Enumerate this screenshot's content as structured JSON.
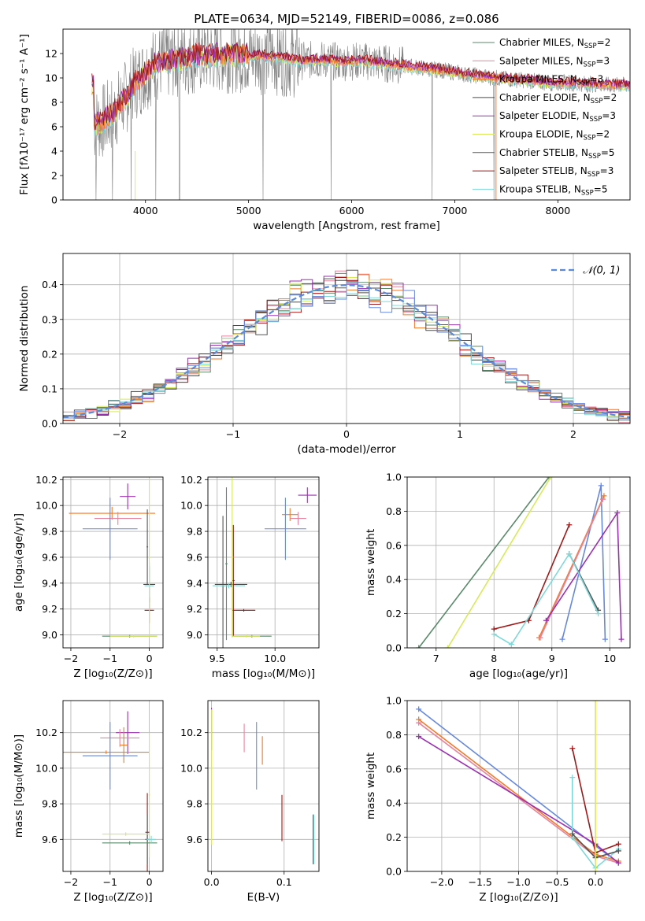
{
  "colors": {
    "chabrier_miles": "#5a8a6a",
    "salpeter_miles": "#e8839e",
    "kroupa_miles": "#ef7a2a",
    "chabrier_elodie": "#4a4a4a",
    "salpeter_elodie": "#9b30b0",
    "kroupa_elodie": "#d6ea5a",
    "chabrier_stelib": "#555555",
    "salpeter_stelib": "#a01818",
    "kroupa_stelib": "#7fd8d8",
    "blue": "#6688dd",
    "grid": "#b0b0b0",
    "spectrum": "#808080"
  },
  "chart_data": [
    {
      "id": "spectrum",
      "type": "line",
      "title": "PLATE=0634, MJD=52149, FIBERID=0086, z=0.086",
      "xlabel": "wavelength [Angstrom, rest frame]",
      "ylabel": "Flux [fλ10⁻¹⁷ erg cm⁻² s⁻¹ A⁻¹]",
      "xlim": [
        3200,
        8700
      ],
      "ylim": [
        0,
        14
      ],
      "xticks": [
        4000,
        5000,
        6000,
        7000,
        8000
      ],
      "yticks": [
        0,
        2,
        4,
        6,
        8,
        10,
        12
      ],
      "grid": false,
      "legend_placement": "right",
      "legend": [
        {
          "label": "Chabrier MILES, N",
          "sub": "SSP",
          "suffix": "=2",
          "color": "#5a8a6a"
        },
        {
          "label": "Salpeter MILES, N",
          "sub": "SSP",
          "suffix": "=3",
          "color": "#e8839e"
        },
        {
          "label": "Kroupa MILES, N",
          "sub": "SSP",
          "suffix": "=3",
          "color": "#ef7a2a"
        },
        {
          "label": "Chabrier ELODIE, N",
          "sub": "SSP",
          "suffix": "=2",
          "color": "#4a4a4a"
        },
        {
          "label": "Salpeter ELODIE, N",
          "sub": "SSP",
          "suffix": "=3",
          "color": "#9b30b0"
        },
        {
          "label": "Kroupa ELODIE, N",
          "sub": "SSP",
          "suffix": "=2",
          "color": "#d6ea5a"
        },
        {
          "label": "Chabrier STELIB, N",
          "sub": "SSP",
          "suffix": "=5",
          "color": "#555555"
        },
        {
          "label": "Salpeter STELIB, N",
          "sub": "SSP",
          "suffix": "=3",
          "color": "#a01818"
        },
        {
          "label": "Kroupa STELIB, N",
          "sub": "SSP",
          "suffix": "=5",
          "color": "#7fd8d8"
        }
      ],
      "continuum": {
        "x": [
          3500,
          3600,
          3700,
          3800,
          3900,
          4000,
          4100,
          4200,
          4300,
          4500,
          4700,
          4900,
          5100,
          5300,
          5500,
          5700,
          5900,
          6100,
          6300,
          6500,
          6700,
          6900,
          7100,
          7300,
          7500,
          7700,
          7900,
          8100,
          8300,
          8500,
          8700
        ],
        "y": [
          6.1,
          6.5,
          7.2,
          8.3,
          9.6,
          10.4,
          11.2,
          11.3,
          11.5,
          11.8,
          11.9,
          11.9,
          11.8,
          11.7,
          11.4,
          11.5,
          11.3,
          11.4,
          11.2,
          11.0,
          10.8,
          10.6,
          10.3,
          10.1,
          9.9,
          9.8,
          9.6,
          9.6,
          9.5,
          9.4,
          9.4
        ]
      }
    },
    {
      "id": "residuals",
      "type": "line",
      "xlabel": "(data-model)/error",
      "ylabel": "Normed distribution",
      "xlim": [
        -2.5,
        2.5
      ],
      "ylim": [
        0,
        0.49
      ],
      "xticks": [
        -2,
        -1,
        0,
        1,
        2
      ],
      "yticks": [
        0.0,
        0.1,
        0.2,
        0.3,
        0.4
      ],
      "grid": true,
      "legend_placement": "top-right",
      "legend": [
        {
          "label": "𝒩(0, 1)",
          "color": "#5b8bd6"
        }
      ],
      "histograms": 9
    },
    {
      "id": "age_vs_Z",
      "type": "scatter",
      "xlabel": "Z [log₁₀(Z/Z⊙)]",
      "ylabel": "age  [log₁₀(age/yr)]",
      "xlim": [
        -2.2,
        0.35
      ],
      "ylim": [
        8.9,
        10.22
      ],
      "xticks": [
        -2,
        -1,
        0
      ],
      "yticks": [
        9.0,
        9.2,
        9.4,
        9.6,
        9.8,
        10.0,
        10.2
      ],
      "grid": true,
      "points": [
        {
          "x": -0.55,
          "y": 10.07,
          "xerr": 0.2,
          "yerr": 0.1,
          "color": "#9b30b0"
        },
        {
          "x": -0.95,
          "y": 9.94,
          "xerr": 1.1,
          "yerr": 0.05,
          "color": "#ef7a2a"
        },
        {
          "x": -0.8,
          "y": 9.9,
          "xerr": 0.6,
          "yerr": 0.05,
          "color": "#e8839e"
        },
        {
          "x": -1.0,
          "y": 9.82,
          "xerr": 0.7,
          "yerr": 0.24,
          "color": "#6688dd"
        },
        {
          "x": -0.05,
          "y": 9.68,
          "xerr": 0.02,
          "yerr": 0.29,
          "color": "#555555"
        },
        {
          "x": 0.0,
          "y": 9.39,
          "xerr": 0.15,
          "yerr": 0.14,
          "color": "#4a4a4a"
        },
        {
          "x": 0.0,
          "y": 9.38,
          "xerr": 0.12,
          "yerr": 0.18,
          "color": "#7fd8d8"
        },
        {
          "x": 0.0,
          "y": 9.19,
          "xerr": 0.12,
          "yerr": 0.1,
          "color": "#a01818"
        },
        {
          "x": 0.0,
          "y": 9.6,
          "xerr": 0.02,
          "yerr": 0.62,
          "color": "#d6ea5a"
        },
        {
          "x": -0.5,
          "y": 8.99,
          "xerr": 0.7,
          "yerr": 0.01,
          "color": "#5a8a6a"
        },
        {
          "x": -0.4,
          "y": 8.99,
          "xerr": 0.6,
          "yerr": 0.01,
          "color": "#d6ea5a"
        }
      ]
    },
    {
      "id": "age_vs_mass",
      "type": "scatter",
      "xlabel": "mass [log₁₀(M/M⊙)]",
      "ylabel": "",
      "xlim": [
        9.42,
        10.38
      ],
      "ylim": [
        8.9,
        10.22
      ],
      "xticks": [
        9.5,
        10.0
      ],
      "yticks": [
        9.0,
        9.2,
        9.4,
        9.6,
        9.8,
        10.0,
        10.2
      ],
      "grid": true,
      "points": [
        {
          "x": 10.28,
          "y": 10.08,
          "xerr": 0.08,
          "yerr": 0.06,
          "color": "#9b30b0"
        },
        {
          "x": 10.13,
          "y": 9.93,
          "xerr": 0.07,
          "yerr": 0.05,
          "color": "#ef7a2a"
        },
        {
          "x": 10.2,
          "y": 9.9,
          "xerr": 0.07,
          "yerr": 0.05,
          "color": "#e8839e"
        },
        {
          "x": 10.09,
          "y": 9.82,
          "xerr": 0.18,
          "yerr": 0.24,
          "color": "#6688dd"
        },
        {
          "x": 9.58,
          "y": 9.55,
          "xerr": 0.01,
          "yerr": 0.59,
          "color": "#5a8a6a"
        },
        {
          "x": 9.55,
          "y": 9.38,
          "xerr": 0.02,
          "yerr": 0.54,
          "color": "#555555"
        },
        {
          "x": 9.62,
          "y": 9.39,
          "xerr": 0.14,
          "yerr": 0.02,
          "color": "#4a4a4a"
        },
        {
          "x": 9.6,
          "y": 9.38,
          "xerr": 0.14,
          "yerr": 0.02,
          "color": "#7fd8d8"
        },
        {
          "x": 9.64,
          "y": 9.42,
          "xerr": 0.01,
          "yerr": 0.43,
          "color": "#a01818"
        },
        {
          "x": 9.73,
          "y": 9.19,
          "xerr": 0.1,
          "yerr": 0.01,
          "color": "#a01818"
        },
        {
          "x": 9.63,
          "y": 9.6,
          "xerr": 0.01,
          "yerr": 0.62,
          "color": "#d6ea5a"
        },
        {
          "x": 9.8,
          "y": 8.99,
          "xerr": 0.17,
          "yerr": 0.01,
          "color": "#5a8a6a"
        },
        {
          "x": 9.75,
          "y": 8.99,
          "xerr": 0.12,
          "yerr": 0.01,
          "color": "#d6ea5a"
        }
      ]
    },
    {
      "id": "weight_vs_age",
      "type": "line",
      "xlabel": "age  [log₁₀(age/yr)]",
      "ylabel": "mass weight",
      "xlim": [
        6.5,
        10.35
      ],
      "ylim": [
        0,
        1.0
      ],
      "xticks": [
        7,
        8,
        9,
        10
      ],
      "yticks": [
        0.0,
        0.2,
        0.4,
        0.6,
        0.8,
        1.0
      ],
      "grid": true,
      "series": [
        {
          "color": "#5a8a6a",
          "x": [
            6.7,
            8.95
          ],
          "y": [
            0.0,
            1.0
          ]
        },
        {
          "color": "#d6ea5a",
          "x": [
            7.2,
            8.98
          ],
          "y": [
            0.0,
            1.0
          ]
        },
        {
          "color": "#a01818",
          "x": [
            8.0,
            8.6,
            9.3
          ],
          "y": [
            0.11,
            0.16,
            0.72
          ]
        },
        {
          "color": "#6688dd",
          "x": [
            9.18,
            9.85,
            9.92
          ],
          "y": [
            0.05,
            0.95,
            0.05
          ]
        },
        {
          "color": "#ef7a2a",
          "x": [
            8.78,
            9.9
          ],
          "y": [
            0.06,
            0.89
          ]
        },
        {
          "color": "#e8839e",
          "x": [
            8.8,
            9.88
          ],
          "y": [
            0.06,
            0.87
          ]
        },
        {
          "color": "#9b30b0",
          "x": [
            8.9,
            10.13,
            10.2
          ],
          "y": [
            0.16,
            0.79,
            0.05
          ]
        },
        {
          "color": "#555555",
          "x": [
            9.3,
            9.8
          ],
          "y": [
            0.55,
            0.22
          ]
        },
        {
          "color": "#7fd8d8",
          "x": [
            8.0,
            8.3,
            9.3,
            9.8
          ],
          "y": [
            0.08,
            0.02,
            0.55,
            0.2
          ]
        }
      ]
    },
    {
      "id": "mass_vs_Z",
      "type": "scatter",
      "xlabel": "Z [log₁₀(Z/Z⊙)]",
      "ylabel": "mass [log₁₀(M/M⊙)]",
      "xlim": [
        -2.2,
        0.35
      ],
      "ylim": [
        9.42,
        10.38
      ],
      "xticks": [
        -2,
        -1,
        0
      ],
      "yticks": [
        9.6,
        9.8,
        10.0,
        10.2
      ],
      "grid": true,
      "points": [
        {
          "x": -0.55,
          "y": 10.2,
          "xerr": 0.3,
          "yerr": 0.12,
          "color": "#9b30b0"
        },
        {
          "x": -0.75,
          "y": 10.17,
          "xerr": 0.5,
          "yerr": 0.05,
          "color": "#e8839e"
        },
        {
          "x": -0.65,
          "y": 10.13,
          "xerr": 0.1,
          "yerr": 0.1,
          "color": "#ef7a2a"
        },
        {
          "x": -1.1,
          "y": 10.09,
          "xerr": 1.1,
          "yerr": 0.01,
          "color": "#ef7a2a"
        },
        {
          "x": -1.0,
          "y": 10.07,
          "xerr": 0.7,
          "yerr": 0.19,
          "color": "#6688dd"
        },
        {
          "x": 0.0,
          "y": 9.85,
          "xerr": 0.02,
          "yerr": 0.35,
          "color": "#d6ea5a"
        },
        {
          "x": -0.05,
          "y": 9.64,
          "xerr": 0.05,
          "yerr": 0.22,
          "color": "#a01818"
        },
        {
          "x": -0.05,
          "y": 9.6,
          "xerr": 0.05,
          "yerr": 0.14,
          "color": "#555555"
        },
        {
          "x": -0.6,
          "y": 9.63,
          "xerr": 0.6,
          "yerr": 0.01,
          "color": "#d6ea5a"
        },
        {
          "x": -0.5,
          "y": 9.58,
          "xerr": 0.7,
          "yerr": 0.01,
          "color": "#5a8a6a"
        },
        {
          "x": 0.05,
          "y": 9.6,
          "xerr": 0.12,
          "yerr": 0.02,
          "color": "#7fd8d8"
        }
      ]
    },
    {
      "id": "mass_vs_ebv",
      "type": "scatter",
      "xlabel": "E(B-V)",
      "ylabel": "",
      "xlim": [
        -0.005,
        0.148
      ],
      "ylim": [
        9.42,
        10.38
      ],
      "xticks": [
        0.0,
        0.1
      ],
      "yticks": [
        9.6,
        9.8,
        10.0,
        10.2
      ],
      "grid": true,
      "points": [
        {
          "x": 0.0,
          "y": 10.22,
          "xerr": 0.0,
          "yerr": 0.12,
          "color": "#9b30b0"
        },
        {
          "x": 0.0,
          "y": 9.95,
          "xerr": 0.0,
          "yerr": 0.38,
          "color": "#d6ea5a"
        },
        {
          "x": 0.045,
          "y": 10.17,
          "xerr": 0.0,
          "yerr": 0.08,
          "color": "#e8839e"
        },
        {
          "x": 0.062,
          "y": 10.07,
          "xerr": 0.0,
          "yerr": 0.19,
          "color": "#6688dd"
        },
        {
          "x": 0.07,
          "y": 10.1,
          "xerr": 0.0,
          "yerr": 0.08,
          "color": "#ef7a2a"
        },
        {
          "x": 0.097,
          "y": 9.72,
          "xerr": 0.0,
          "yerr": 0.13,
          "color": "#a01818"
        },
        {
          "x": 0.14,
          "y": 9.6,
          "xerr": 0.0,
          "yerr": 0.14,
          "color": "#555555"
        },
        {
          "x": 0.141,
          "y": 9.6,
          "xerr": 0.0,
          "yerr": 0.14,
          "color": "#7fd8d8"
        }
      ]
    },
    {
      "id": "weight_vs_Z",
      "type": "line",
      "xlabel": "Z [log₁₀(Z/Z⊙)]",
      "ylabel": "mass weight",
      "xlim": [
        -2.45,
        0.45
      ],
      "ylim": [
        0,
        1.0
      ],
      "xticks": [
        -2.0,
        -1.5,
        -1.0,
        -0.5,
        0.0
      ],
      "yticks": [
        0.0,
        0.2,
        0.4,
        0.6,
        0.8,
        1.0
      ],
      "grid": true,
      "series": [
        {
          "color": "#6688dd",
          "x": [
            -2.3,
            0.0,
            0.3
          ],
          "y": [
            0.95,
            0.15,
            0.05
          ]
        },
        {
          "color": "#ef7a2a",
          "x": [
            -2.3,
            0.0,
            0.3
          ],
          "y": [
            0.89,
            0.1,
            0.06
          ]
        },
        {
          "color": "#e8839e",
          "x": [
            -2.3,
            0.0,
            0.3
          ],
          "y": [
            0.87,
            0.09,
            0.05
          ]
        },
        {
          "color": "#9b30b0",
          "x": [
            -2.3,
            0.0,
            0.3
          ],
          "y": [
            0.79,
            0.16,
            0.05
          ]
        },
        {
          "color": "#a01818",
          "x": [
            -0.3,
            0.0,
            0.3
          ],
          "y": [
            0.72,
            0.11,
            0.16
          ]
        },
        {
          "color": "#7fd8d8",
          "x": [
            -0.3,
            -0.3,
            0.0,
            0.3
          ],
          "y": [
            0.55,
            0.2,
            0.02,
            0.13
          ]
        },
        {
          "color": "#555555",
          "x": [
            -0.3,
            0.0,
            0.3
          ],
          "y": [
            0.22,
            0.08,
            0.12
          ]
        },
        {
          "color": "#d6ea5a",
          "x": [
            0.0,
            0.0
          ],
          "y": [
            0.0,
            1.0
          ]
        }
      ]
    }
  ]
}
